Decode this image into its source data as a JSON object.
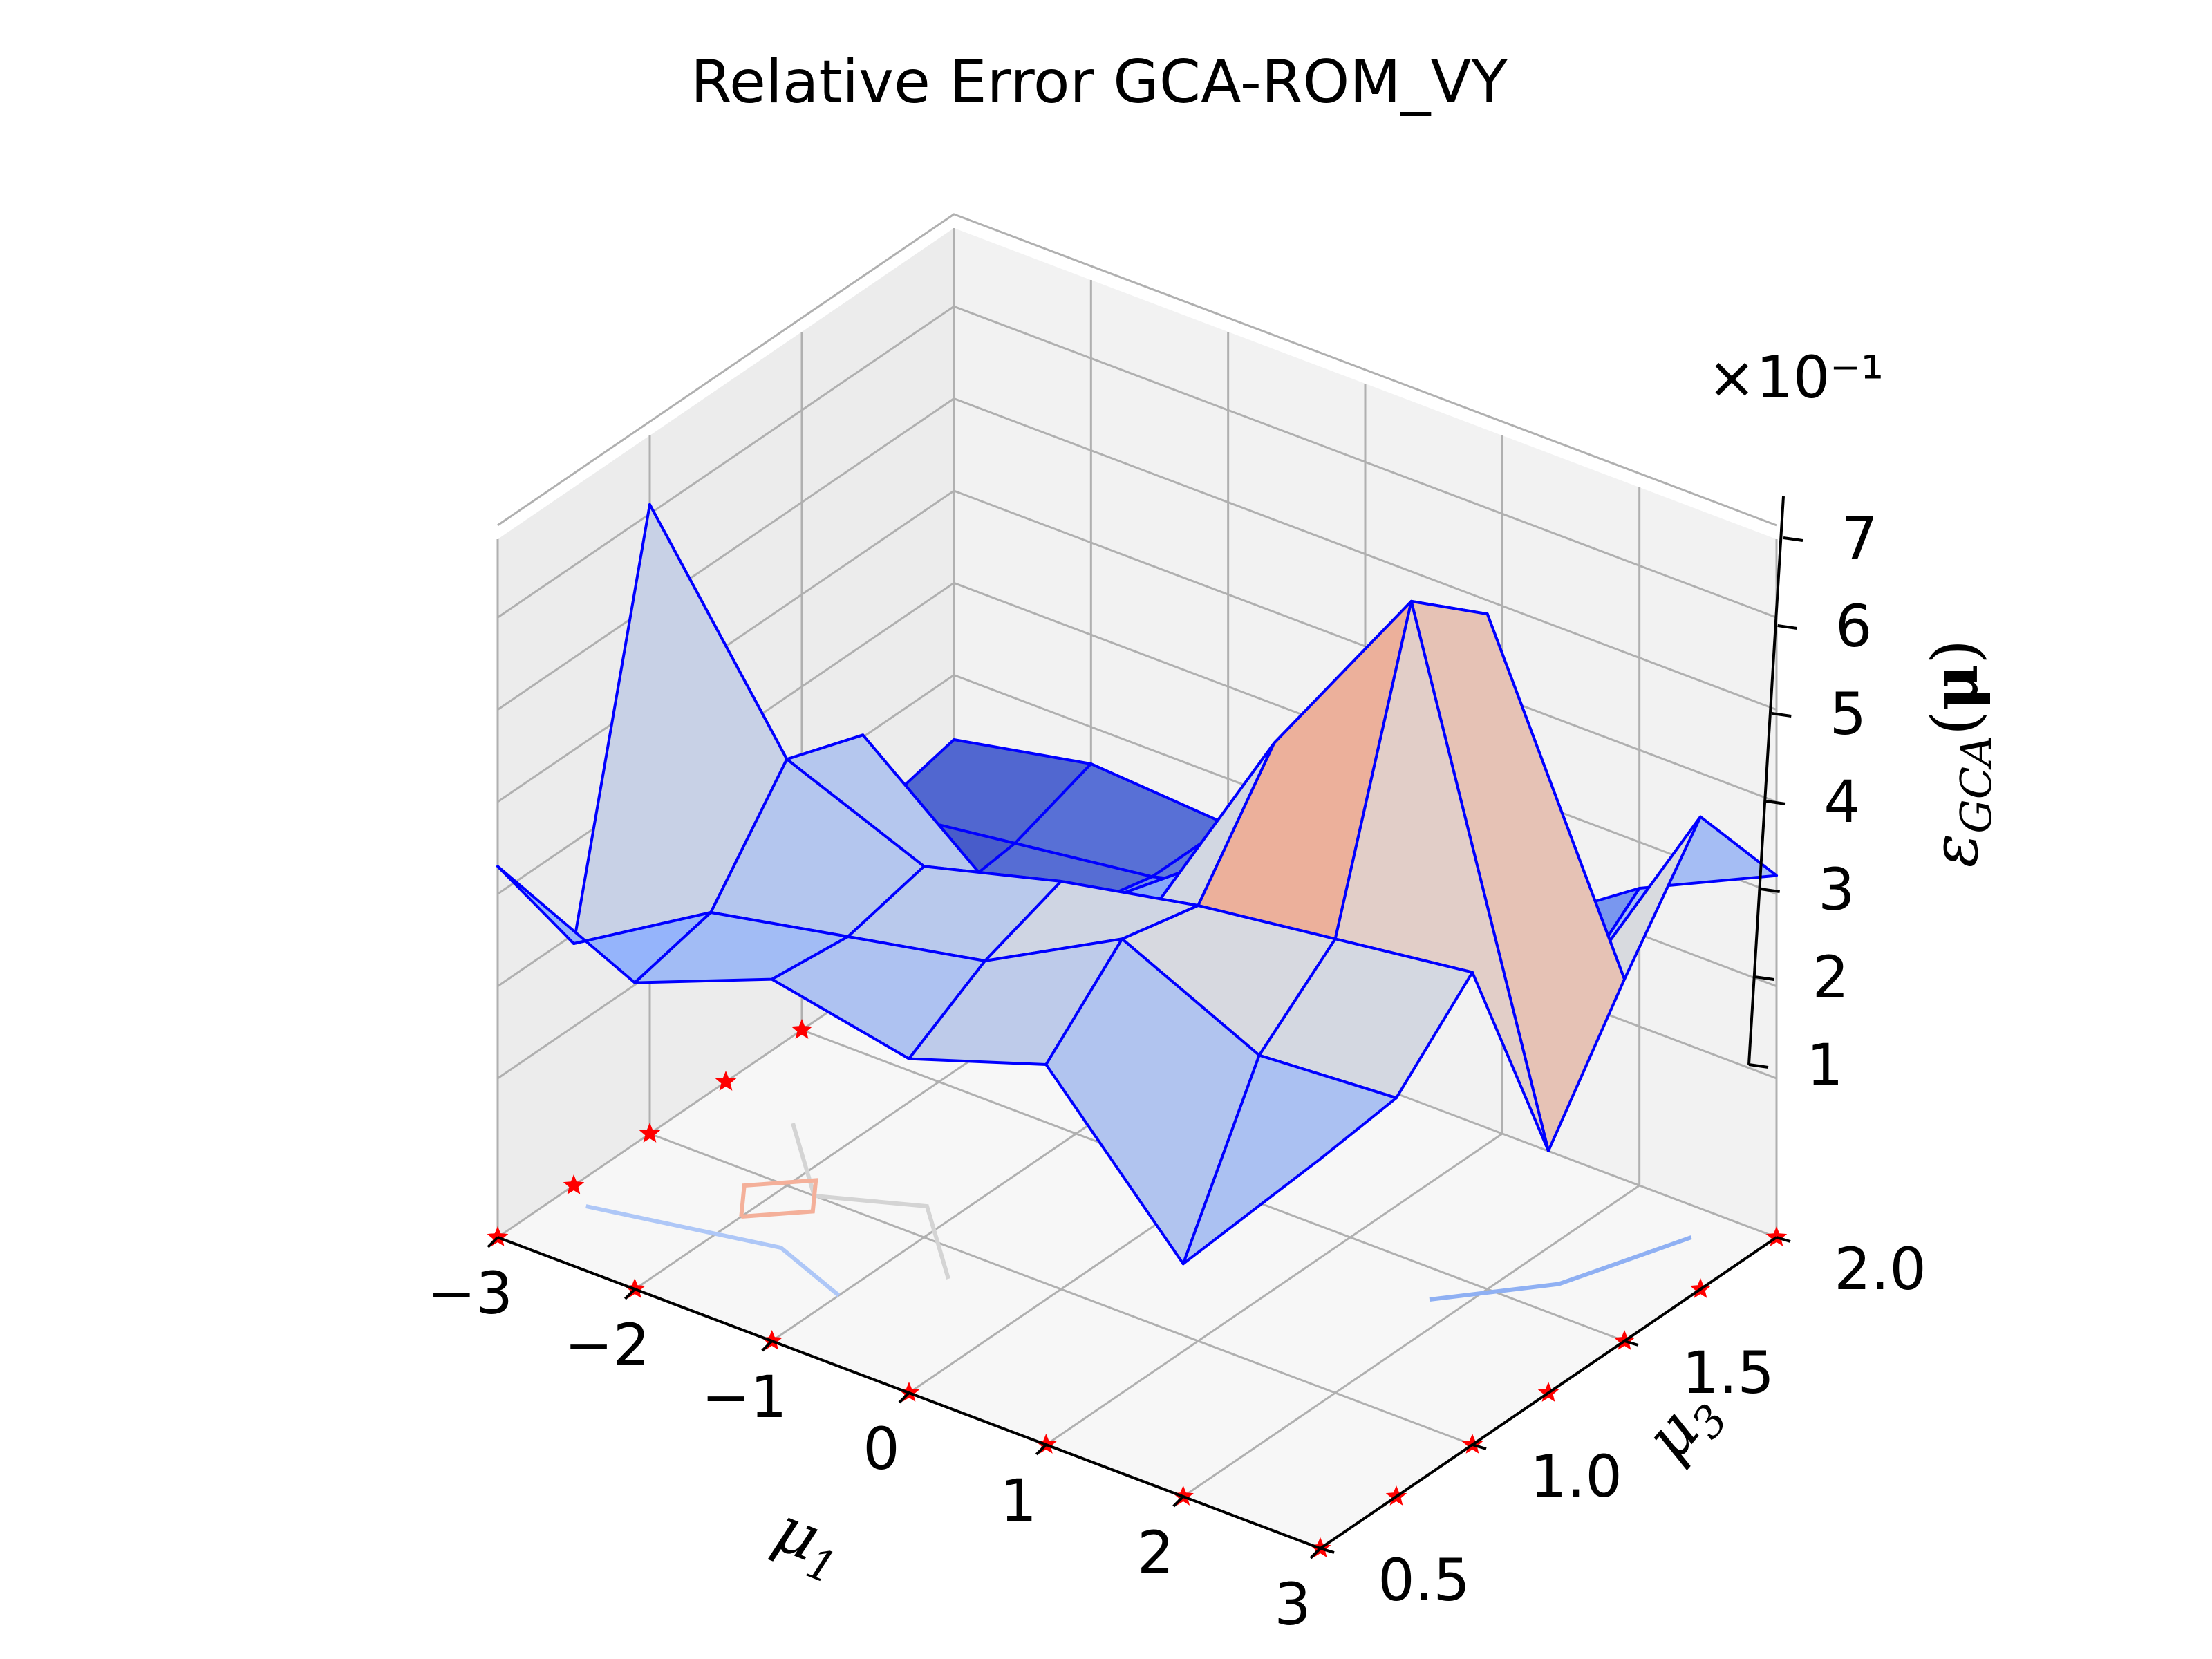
{
  "chart_data": {
    "type": "surface3d",
    "title": "Relative Error GCA-ROM_VY",
    "xlabel": {
      "base": "μ",
      "sub": "1"
    },
    "ylabel": {
      "base": "μ",
      "sub": "3"
    },
    "zlabel": {
      "base": "ε",
      "sub": "GCA",
      "arg_open": "(",
      "arg": "μ",
      "arg_close": ")"
    },
    "z_multiplier": "×10⁻¹",
    "xlim": [
      -3,
      3
    ],
    "ylim": [
      0.5,
      2.0
    ],
    "zlim": [
      1,
      7
    ],
    "x_ticks": [
      "−3",
      "−2",
      "−1",
      "0",
      "1",
      "2",
      "3"
    ],
    "y_ticks": [
      "0.5",
      "1.0",
      "1.5",
      "2.0"
    ],
    "z_ticks": [
      "1",
      "2",
      "3",
      "4",
      "5",
      "6",
      "7"
    ],
    "x": [
      -3,
      -2,
      -1,
      0,
      1,
      2,
      3
    ],
    "y": [
      0.5,
      0.75,
      1.0,
      1.25,
      1.5,
      1.75,
      2.0
    ],
    "z": [
      [
        3.3,
        2.6,
        3.2,
        2.9,
        3.4,
        1.8,
        3.5
      ],
      [
        1.9,
        2.8,
        3.1,
        3.4,
        4.2,
        3.5,
        3.6
      ],
      [
        6.1,
        3.9,
        3.3,
        3.7,
        4.0,
        4.2,
        4.4
      ],
      [
        0.9,
        3.6,
        2.4,
        2.6,
        5.2,
        7.3,
        1.9
      ],
      [
        1.0,
        1.2,
        1.7,
        2.8,
        3.0,
        6.6,
        3.2
      ],
      [
        1.1,
        1.3,
        1.5,
        1.9,
        2.6,
        1.8,
        4.4
      ],
      [
        1.3,
        1.6,
        1.5,
        1.6,
        1.5,
        2.5,
        3.2
      ]
    ],
    "colormap": "coolwarm",
    "edge_color": "#0000ff",
    "marker_color": "#ff0000",
    "grid": true
  }
}
